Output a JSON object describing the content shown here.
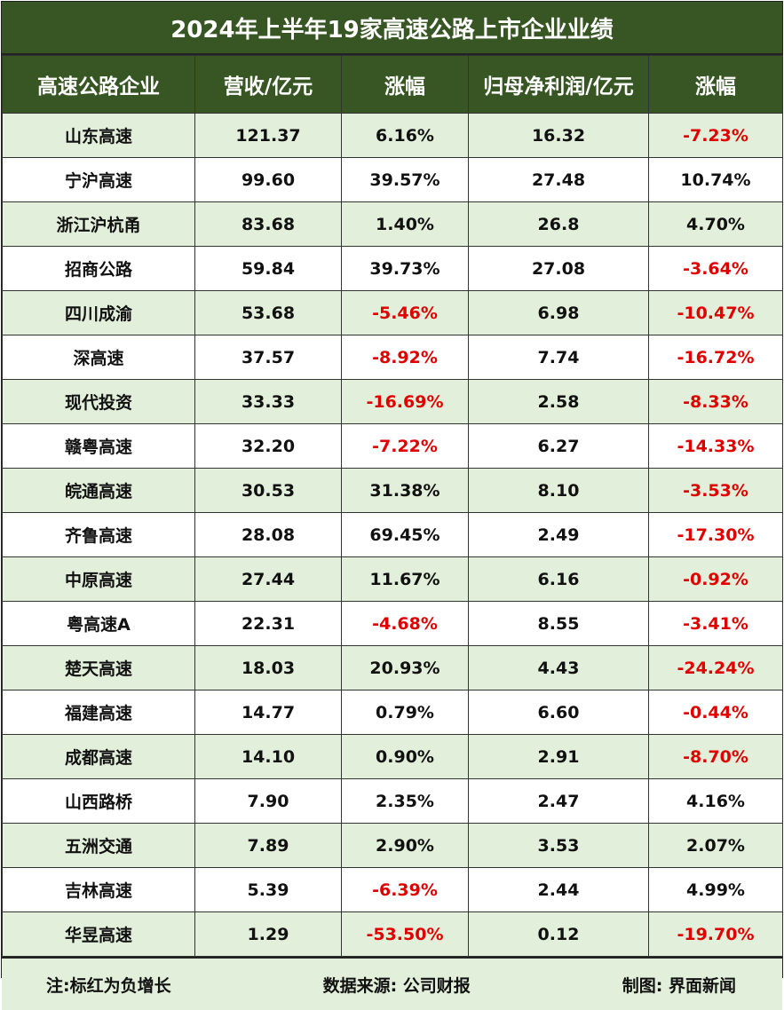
{
  "title": "2024年上半年19家高速公路上市企业业绩",
  "headers": [
    "高速公路企业",
    "营收/亿元",
    "涨幅",
    "归母净利润/亿元",
    "涨幅"
  ],
  "rows": [
    [
      "山东高速",
      "121.37",
      "6.16%",
      "16.32",
      "-7.23%"
    ],
    [
      "宁沪高速",
      "99.60",
      "39.57%",
      "27.48",
      "10.74%"
    ],
    [
      "浙江沪杭甬",
      "83.68",
      "1.40%",
      "26.8",
      "4.70%"
    ],
    [
      "招商公路",
      "59.84",
      "39.73%",
      "27.08",
      "-3.64%"
    ],
    [
      "四川成渝",
      "53.68",
      "-5.46%",
      "6.98",
      "-10.47%"
    ],
    [
      "深高速",
      "37.57",
      "-8.92%",
      "7.74",
      "-16.72%"
    ],
    [
      "现代投资",
      "33.33",
      "-16.69%",
      "2.58",
      "-8.33%"
    ],
    [
      "赣粤高速",
      "32.20",
      "-7.22%",
      "6.27",
      "-14.33%"
    ],
    [
      "皖通高速",
      "30.53",
      "31.38%",
      "8.10",
      "-3.53%"
    ],
    [
      "齐鲁高速",
      "28.08",
      "69.45%",
      "2.49",
      "-17.30%"
    ],
    [
      "中原高速",
      "27.44",
      "11.67%",
      "6.16",
      "-0.92%"
    ],
    [
      "粤高速A",
      "22.31",
      "-4.68%",
      "8.55",
      "-3.41%"
    ],
    [
      "楚天高速",
      "18.03",
      "20.93%",
      "4.43",
      "-24.24%"
    ],
    [
      "福建高速",
      "14.77",
      "0.79%",
      "6.60",
      "-0.44%"
    ],
    [
      "成都高速",
      "14.10",
      "0.90%",
      "2.91",
      "-8.70%"
    ],
    [
      "山西路桥",
      "7.90",
      "2.35%",
      "2.47",
      "4.16%"
    ],
    [
      "五洲交通",
      "7.89",
      "2.90%",
      "3.53",
      "2.07%"
    ],
    [
      "吉林高速",
      "5.39",
      "-6.39%",
      "2.44",
      "4.99%"
    ],
    [
      "华昱高速",
      "1.29",
      "-53.50%",
      "0.12",
      "-19.70%"
    ]
  ],
  "footer": {
    "note": "注:标红为负增长",
    "source": "数据来源: 公司财报",
    "credit": "制图: 界面新闻"
  },
  "colors": {
    "header_bg": "#375623",
    "band_bg": "#e2efda",
    "negative": "#e00000"
  }
}
